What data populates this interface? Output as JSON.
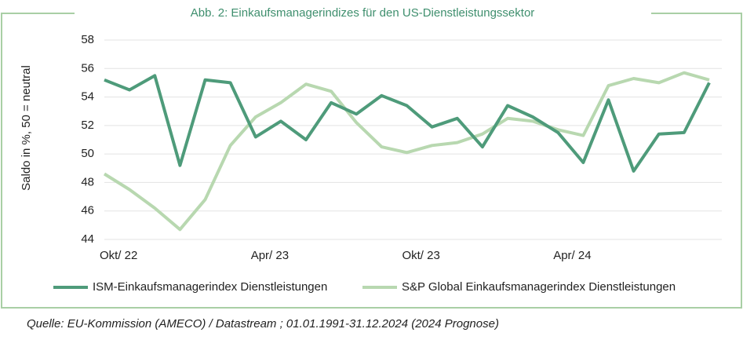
{
  "chart_data": {
    "type": "line",
    "title": "Abb. 2: Einkaufsmanagerindizes für den US-Dienstleistungssektor",
    "y_label": "Saldo in %, 50 = neutral",
    "source": "Quelle:  EU-Kommission (AMECO) / Datastream ; 01.01.1991-31.12.2024 (2024 Prognose)",
    "categories": [
      null,
      "Okt/ 22",
      null,
      null,
      null,
      null,
      null,
      "Apr/ 23",
      null,
      null,
      null,
      null,
      null,
      "Okt/ 23",
      null,
      null,
      null,
      null,
      null,
      "Apr/ 24",
      null,
      null,
      null,
      null,
      null
    ],
    "series": [
      {
        "name": "ISM-Einkaufsmanagerindex Dienstleistungen",
        "color": "#4e9b7a",
        "values": [
          55.2,
          54.5,
          55.5,
          49.2,
          55.2,
          55.0,
          51.2,
          52.3,
          51.0,
          53.6,
          52.8,
          54.1,
          53.4,
          51.9,
          52.5,
          50.5,
          53.4,
          52.6,
          51.5,
          49.4,
          53.8,
          48.8,
          51.4,
          51.5,
          55.0
        ]
      },
      {
        "name": "S&P Global Einkaufsmanagerindex Dienstleistungen",
        "color": "#b8d8b0",
        "values": [
          48.6,
          47.5,
          46.2,
          44.7,
          46.8,
          50.6,
          52.6,
          53.6,
          54.9,
          54.4,
          52.2,
          50.5,
          50.1,
          50.6,
          50.8,
          51.4,
          52.5,
          52.3,
          51.7,
          51.3,
          54.8,
          55.3,
          55.0,
          55.7,
          55.2
        ]
      }
    ],
    "ylim": [
      44,
      58
    ],
    "yticks": [
      44,
      46,
      48,
      50,
      52,
      54,
      56,
      58
    ],
    "grid": true
  }
}
